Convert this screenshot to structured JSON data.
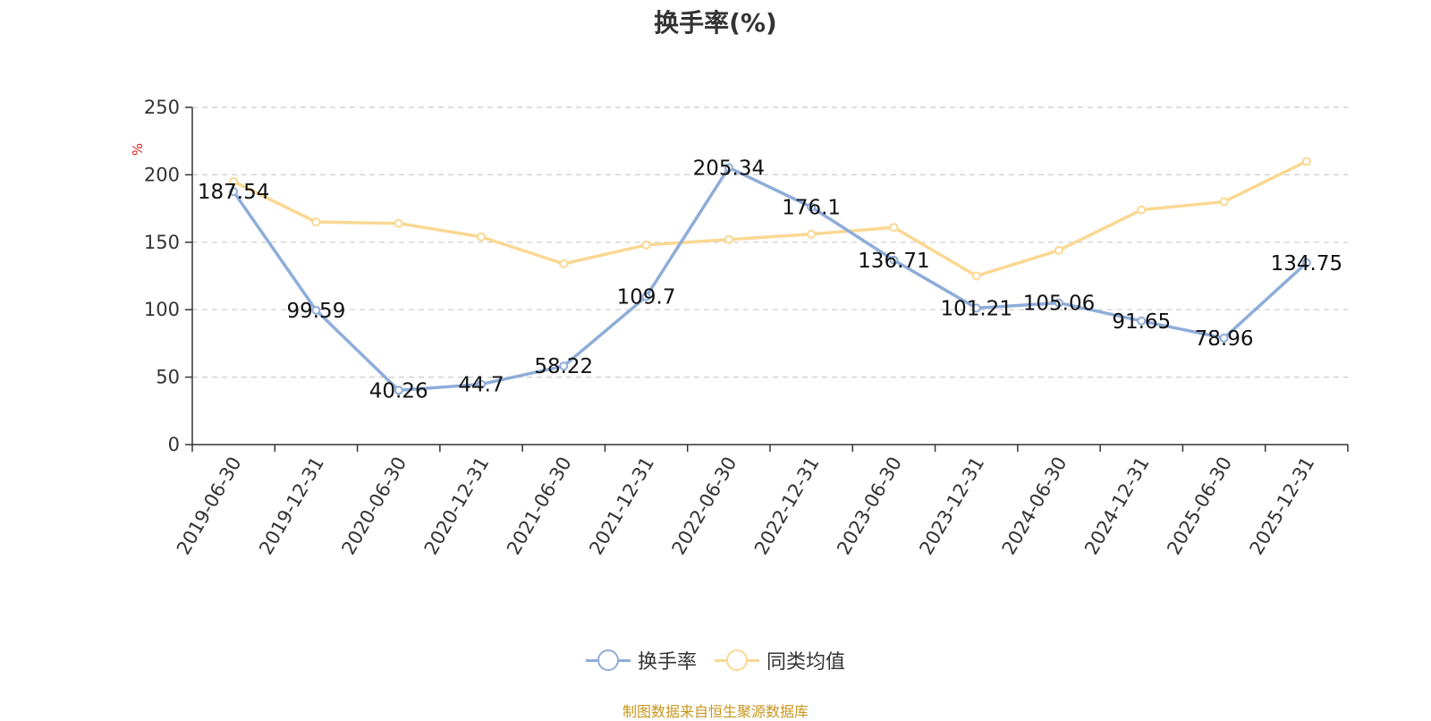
{
  "chart_data": {
    "type": "line",
    "title": "换手率(%)",
    "ylabel": "%",
    "xlabel": "",
    "ylim": [
      0,
      250
    ],
    "yticks": [
      0,
      50,
      100,
      150,
      200,
      250
    ],
    "grid": true,
    "legend_position": "bottom-center",
    "categories": [
      "2019-06-30",
      "2019-12-31",
      "2020-06-30",
      "2020-12-31",
      "2021-06-30",
      "2021-12-31",
      "2022-06-30",
      "2022-12-31",
      "2023-06-30",
      "2023-12-31",
      "2024-06-30",
      "2024-12-31",
      "2025-06-30",
      "2025-12-31"
    ],
    "series": [
      {
        "name": "换手率",
        "color": "#8eadd9",
        "values": [
          187.54,
          99.59,
          40.26,
          44.7,
          58.22,
          109.7,
          205.34,
          176.1,
          136.71,
          101.21,
          105.06,
          91.65,
          78.96,
          134.75
        ],
        "labels": [
          "187.54",
          "99.59",
          "40.26",
          "44.7",
          "58.22",
          "109.7",
          "205.34",
          "176.1",
          "136.71",
          "101.21",
          "105.06",
          "91.65",
          "78.96",
          "134.75"
        ]
      },
      {
        "name": "同类均值",
        "color": "#fad893",
        "values": [
          195,
          165,
          164,
          154,
          134,
          148,
          152,
          156,
          161,
          125,
          144,
          174,
          180,
          210
        ]
      }
    ]
  },
  "source": "制图数据来自恒生聚源数据库",
  "colors": {
    "axis": "#333333",
    "grid": "#cccccc",
    "ylabel": "#e02020",
    "source": "#c8961e"
  }
}
